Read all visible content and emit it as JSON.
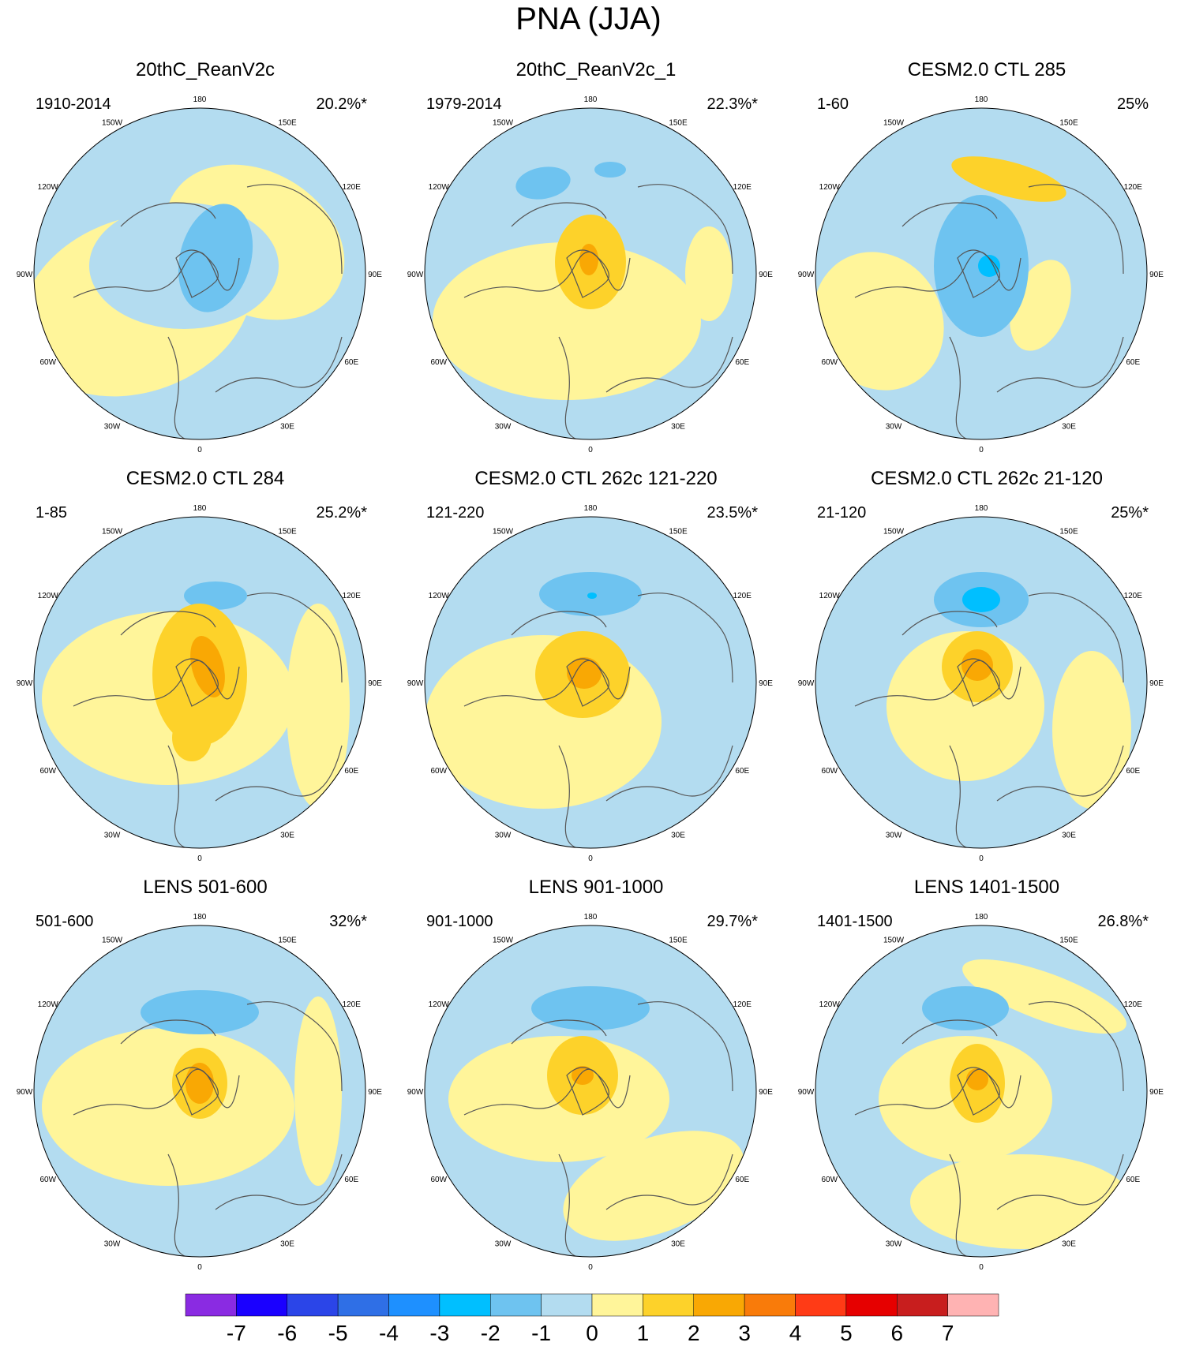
{
  "title": "PNA (JJA)",
  "colors": {
    "lightblue": "#b3dcf0",
    "blue1": "#6ec3f0",
    "blue2": "#00bfff",
    "yellow": "#fff59a",
    "gold": "#fdd22a",
    "orange": "#f9a804",
    "coast": "#555555"
  },
  "lon_labels": [
    "180",
    "150E",
    "120E",
    "90E",
    "60E",
    "30E",
    "0",
    "30W",
    "60W",
    "90W",
    "120W",
    "150W"
  ],
  "panels": [
    {
      "title": "20thC_ReanV2c",
      "period": "1910-2014",
      "pct": "20.2%*"
    },
    {
      "title": "20thC_ReanV2c_1",
      "period": "1979-2014",
      "pct": "22.3%*"
    },
    {
      "title": "CESM2.0 CTL 285",
      "period": "1-60",
      "pct": "25%"
    },
    {
      "title": "CESM2.0 CTL 284",
      "period": "1-85",
      "pct": "25.2%*"
    },
    {
      "title": "CESM2.0 CTL 262c 121-220",
      "period": "121-220",
      "pct": "23.5%*"
    },
    {
      "title": "CESM2.0 CTL 262c 21-120",
      "period": "21-120",
      "pct": "25%*"
    },
    {
      "title": "LENS 501-600",
      "period": "501-600",
      "pct": "32%*"
    },
    {
      "title": "LENS 901-1000",
      "period": "901-1000",
      "pct": "29.7%*"
    },
    {
      "title": "LENS 1401-1500",
      "period": "1401-1500",
      "pct": "26.8%*"
    }
  ],
  "colorbar": {
    "colors": [
      "#8a2be2",
      "#1a00ff",
      "#2b45e8",
      "#2f6fe6",
      "#1e90ff",
      "#00bfff",
      "#6ec3f0",
      "#b3dcf0",
      "#fff59a",
      "#fdd22a",
      "#f9a804",
      "#f97b0a",
      "#ff3b16",
      "#e60000",
      "#c81e1e",
      "#ffb3b3"
    ],
    "labels": [
      "-7",
      "-6",
      "-5",
      "-4",
      "-3",
      "-2",
      "-1",
      "0",
      "1",
      "2",
      "3",
      "4",
      "5",
      "6",
      "7"
    ]
  }
}
